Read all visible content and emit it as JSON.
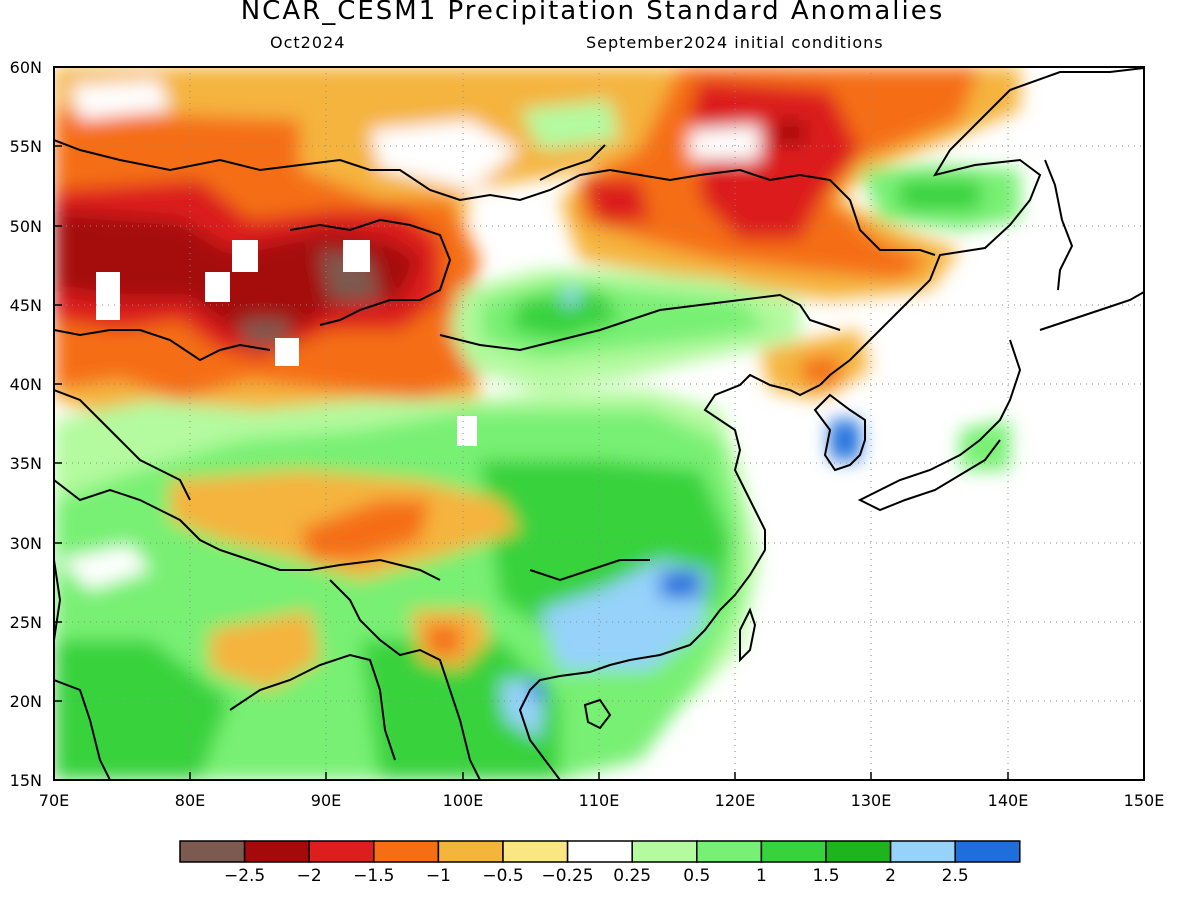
{
  "title": "NCAR_CESM1 Precipitation Standard Anomalies",
  "subtitle_left": "Oct2024",
  "subtitle_right": "September2024 initial conditions",
  "map": {
    "lon_range": [
      70,
      150
    ],
    "lat_range": [
      15,
      60
    ],
    "lon_ticks": [
      "70E",
      "80E",
      "90E",
      "100E",
      "110E",
      "120E",
      "130E",
      "140E",
      "150E"
    ],
    "lat_ticks": [
      "60N",
      "55N",
      "50N",
      "45N",
      "40N",
      "35N",
      "30N",
      "25N",
      "20N",
      "15N"
    ],
    "grid": "dotted"
  },
  "colorbar": {
    "colors": [
      "#7d5a4f",
      "#a50a0a",
      "#dc1e1e",
      "#f56e14",
      "#f5b43c",
      "#fae682",
      "#ffffff",
      "#b4fa9f",
      "#78f073",
      "#37d23c",
      "#1eb41e",
      "#96d2fa",
      "#1e6edc"
    ],
    "labels": [
      "−2.5",
      "−2",
      "−1.5",
      "−1",
      "−0.5",
      "−0.25",
      "0.25",
      "0.5",
      "1",
      "1.5",
      "2",
      "2.5"
    ]
  }
}
